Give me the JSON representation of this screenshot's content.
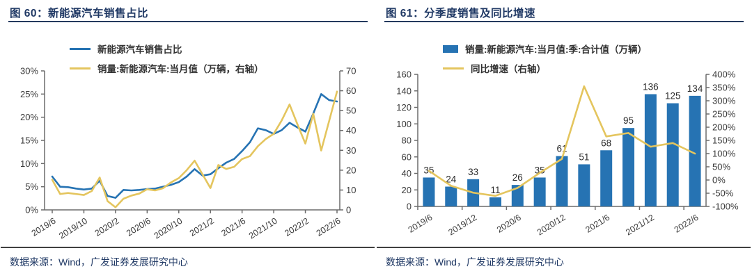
{
  "theme": {
    "title_color": "#1f3864",
    "axis_text_color": "#3a3a3a",
    "axis_line_color": "#6b6b6b",
    "rule_color": "#404040",
    "blue": "#2673b3",
    "yellow": "#e4c55e"
  },
  "chart_data": [
    {
      "type": "line",
      "title": "图 60：新能源汽车销售占比",
      "source": "数据来源：Wind，广发证券发展研究中心",
      "legend_position": "top",
      "grid": false,
      "x": [
        "2019/6",
        "2019/7",
        "2019/8",
        "2019/9",
        "2019/10",
        "2019/11",
        "2019/12",
        "2020/1",
        "2020/2",
        "2020/3",
        "2020/4",
        "2020/5",
        "2020/6",
        "2020/7",
        "2020/8",
        "2020/9",
        "2020/10",
        "2020/11",
        "2020/12",
        "2021/1",
        "2021/2",
        "2021/3",
        "2021/4",
        "2021/5",
        "2021/6",
        "2021/7",
        "2021/8",
        "2021/9",
        "2021/10",
        "2021/11",
        "2021/12",
        "2022/1",
        "2022/2",
        "2022/3",
        "2022/4",
        "2022/5",
        "2022/6"
      ],
      "x_label_every": 4,
      "x_tick_labels": [
        "2019/6",
        "2019/10",
        "2020/2",
        "2020/6",
        "2020/10",
        "2021/2",
        "2021/6",
        "2021/10",
        "2022/2",
        "2022/6"
      ],
      "y_left": {
        "min": 0,
        "max": 30,
        "step": 5,
        "unit": "%",
        "ticks": [
          "0%",
          "5%",
          "10%",
          "15%",
          "20%",
          "25%",
          "30%"
        ]
      },
      "y_right": {
        "min": 0,
        "max": 70,
        "step": 10,
        "unit": "",
        "ticks": [
          "0",
          "10",
          "20",
          "30",
          "40",
          "50",
          "60",
          "70"
        ]
      },
      "series": [
        {
          "name": "新能源汽车销售占比",
          "type": "line",
          "axis": "left",
          "color": "#2673b3",
          "values": [
            7.2,
            5.0,
            4.9,
            4.6,
            4.4,
            4.6,
            6.3,
            3.0,
            2.6,
            4.3,
            4.2,
            4.3,
            4.5,
            4.6,
            5.0,
            5.4,
            6.0,
            7.2,
            8.8,
            7.4,
            7.7,
            9.0,
            10.2,
            11.0,
            12.7,
            14.6,
            17.6,
            17.2,
            16.4,
            17.2,
            18.8,
            17.8,
            16.9,
            20.8,
            25.0,
            23.7,
            23.4
          ]
        },
        {
          "name": "销量:新能源汽车:当月值（万辆，右轴）",
          "type": "line",
          "axis": "right",
          "color": "#e4c55e",
          "values": [
            15.2,
            8.0,
            8.5,
            8.0,
            7.5,
            9.5,
            16.3,
            4.4,
            1.3,
            5.6,
            7.2,
            8.2,
            10.4,
            9.8,
            10.9,
            13.8,
            16.0,
            20.0,
            24.8,
            17.9,
            11.0,
            22.6,
            20.6,
            21.7,
            25.6,
            27.1,
            32.1,
            35.7,
            38.3,
            45.0,
            53.1,
            43.1,
            33.4,
            48.4,
            29.9,
            44.7,
            59.6
          ]
        }
      ]
    },
    {
      "type": "bar+line",
      "title": "图 61：分季度销售及同比增速",
      "source": "数据来源：Wind，广发证券发展研究中心",
      "legend_position": "top",
      "grid": false,
      "x": [
        "2019/6",
        "2019/9",
        "2019/12",
        "2020/3",
        "2020/6",
        "2020/9",
        "2020/12",
        "2021/3",
        "2021/6",
        "2021/9",
        "2021/12",
        "2022/3",
        "2022/6"
      ],
      "x_label_every": 2,
      "x_tick_labels": [
        "2019/6",
        "2019/12",
        "2020/6",
        "2020/12",
        "2021/6",
        "2021/12",
        "2022/6"
      ],
      "y_left": {
        "min": 0,
        "max": 160,
        "step": 20,
        "unit": "",
        "ticks": [
          "0",
          "20",
          "40",
          "60",
          "80",
          "100",
          "120",
          "140",
          "160"
        ]
      },
      "y_right": {
        "min": -100,
        "max": 400,
        "step": 50,
        "unit": "%",
        "ticks": [
          "-100%",
          "-50%",
          "0%",
          "50%",
          "100%",
          "150%",
          "200%",
          "250%",
          "300%",
          "350%",
          "400%"
        ]
      },
      "series": [
        {
          "name": "销量:新能源汽车:当月值:季:合计值（万辆）",
          "type": "bar",
          "axis": "left",
          "color": "#2673b3",
          "values": [
            35,
            24,
            33,
            11,
            26,
            35,
            61,
            51,
            68,
            95,
            136,
            125,
            134
          ],
          "data_labels": true
        },
        {
          "name": "同比增速（右轴）",
          "type": "line",
          "axis": "right",
          "color": "#e4c55e",
          "values": [
            35,
            -22,
            -48,
            -60,
            -30,
            27,
            80,
            355,
            165,
            178,
            126,
            140,
            100
          ]
        }
      ]
    }
  ]
}
